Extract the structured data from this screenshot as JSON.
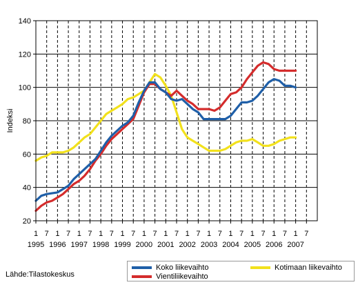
{
  "chart_data": {
    "type": "line",
    "title": "",
    "xlabel": "",
    "ylabel": "Indeksi",
    "ylim": [
      20,
      140
    ],
    "yticks": [
      20,
      40,
      60,
      80,
      100,
      120,
      140
    ],
    "grid": "vertical dashed at half-year ticks, horizontal solid at y ticks",
    "legend_position": "bottom-right",
    "x_tick_labels_top": [
      "1",
      "7",
      "1",
      "7",
      "1",
      "7",
      "1",
      "7",
      "1",
      "7",
      "1",
      "7",
      "1",
      "7",
      "1",
      "7",
      "1",
      "7",
      "1",
      "7",
      "1",
      "7",
      "1",
      "7",
      "1",
      "7"
    ],
    "x_year_labels": [
      "1995",
      "1996",
      "1997",
      "1998",
      "1999",
      "2000",
      "2001",
      "2002",
      "2003",
      "2004",
      "2005",
      "2006",
      "2007"
    ],
    "colors": {
      "koko": "#1f5fa8",
      "vienti": "#d42c2c",
      "kotimaa": "#f2e11c"
    },
    "series": [
      {
        "name": "Koko liikevaihto",
        "color": "#1f5fa8",
        "x": [
          1995.0,
          1995.25,
          1995.5,
          1995.75,
          1996.0,
          1996.25,
          1996.5,
          1996.75,
          1997.0,
          1997.25,
          1997.5,
          1997.75,
          1998.0,
          1998.25,
          1998.5,
          1998.75,
          1999.0,
          1999.25,
          1999.5,
          1999.75,
          2000.0,
          2000.25,
          2000.5,
          2000.75,
          2001.0,
          2001.25,
          2001.5,
          2001.75,
          2002.0,
          2002.25,
          2002.5,
          2002.75,
          2003.0,
          2003.25,
          2003.5,
          2003.75,
          2004.0,
          2004.25,
          2004.5,
          2004.75,
          2005.0,
          2005.25,
          2005.5,
          2005.75,
          2006.0,
          2006.25,
          2006.5,
          2006.75,
          2007.0
        ],
        "y": [
          32,
          35,
          36,
          36.5,
          37,
          39,
          41,
          45,
          48,
          51,
          54,
          57,
          62,
          67,
          71,
          74,
          77,
          79,
          83,
          91,
          98,
          103,
          103,
          99,
          97,
          93,
          92,
          93,
          90,
          87,
          85,
          81,
          81,
          81,
          81,
          81,
          83,
          87,
          91,
          91,
          92,
          95,
          99,
          103,
          105,
          104,
          101,
          101,
          100
        ]
      },
      {
        "name": "Vientiliikevaihto",
        "color": "#d42c2c",
        "x": [
          1995.0,
          1995.25,
          1995.5,
          1995.75,
          1996.0,
          1996.25,
          1996.5,
          1996.75,
          1997.0,
          1997.25,
          1997.5,
          1997.75,
          1998.0,
          1998.25,
          1998.5,
          1998.75,
          1999.0,
          1999.25,
          1999.5,
          1999.75,
          2000.0,
          2000.25,
          2000.5,
          2000.75,
          2001.0,
          2001.25,
          2001.5,
          2001.75,
          2002.0,
          2002.25,
          2002.5,
          2002.75,
          2003.0,
          2003.25,
          2003.5,
          2003.75,
          2004.0,
          2004.25,
          2004.5,
          2004.75,
          2005.0,
          2005.25,
          2005.5,
          2005.75,
          2006.0,
          2006.25,
          2006.5,
          2006.75,
          2007.0
        ],
        "y": [
          26,
          29,
          31,
          32,
          34,
          36,
          39,
          42,
          44,
          47,
          51,
          56,
          60,
          65,
          69,
          72,
          75,
          78,
          81,
          89,
          97,
          102,
          102,
          99,
          97,
          95,
          98,
          95,
          92,
          90,
          87,
          87,
          87,
          86,
          88,
          92,
          96,
          97,
          100,
          105,
          109,
          113,
          115,
          114,
          111,
          110,
          110,
          110,
          110
        ]
      },
      {
        "name": "Kotimaan liikevaihto",
        "color": "#f2e11c",
        "x": [
          1995.0,
          1995.25,
          1995.5,
          1995.75,
          1996.0,
          1996.25,
          1996.5,
          1996.75,
          1997.0,
          1997.25,
          1997.5,
          1997.75,
          1998.0,
          1998.25,
          1998.5,
          1998.75,
          1999.0,
          1999.25,
          1999.5,
          1999.75,
          2000.0,
          2000.25,
          2000.5,
          2000.75,
          2001.0,
          2001.25,
          2001.5,
          2001.75,
          2002.0,
          2002.25,
          2002.5,
          2002.75,
          2003.0,
          2003.25,
          2003.5,
          2003.75,
          2004.0,
          2004.25,
          2004.5,
          2004.75,
          2005.0,
          2005.25,
          2005.5,
          2005.75,
          2006.0,
          2006.25,
          2006.5,
          2006.75,
          2007.0
        ],
        "y": [
          56,
          58,
          59,
          61,
          61,
          61,
          62,
          64,
          67,
          70,
          72,
          76,
          80,
          84,
          86,
          88,
          90,
          93,
          94,
          96,
          98,
          103,
          108,
          106,
          101,
          95,
          85,
          75,
          70,
          68,
          66,
          64,
          62,
          62,
          62,
          63,
          65,
          67,
          68,
          68,
          69,
          67,
          65,
          65,
          66,
          68,
          69,
          70,
          70
        ]
      }
    ]
  },
  "legend": {
    "items": [
      {
        "label": "Koko liikevaihto",
        "color": "#1f5fa8"
      },
      {
        "label": "Vientiliikevaihto",
        "color": "#d42c2c"
      },
      {
        "label": "Kotimaan liikevaihto",
        "color": "#f2e11c"
      }
    ]
  },
  "source": "Lähde:Tilastokeskus"
}
